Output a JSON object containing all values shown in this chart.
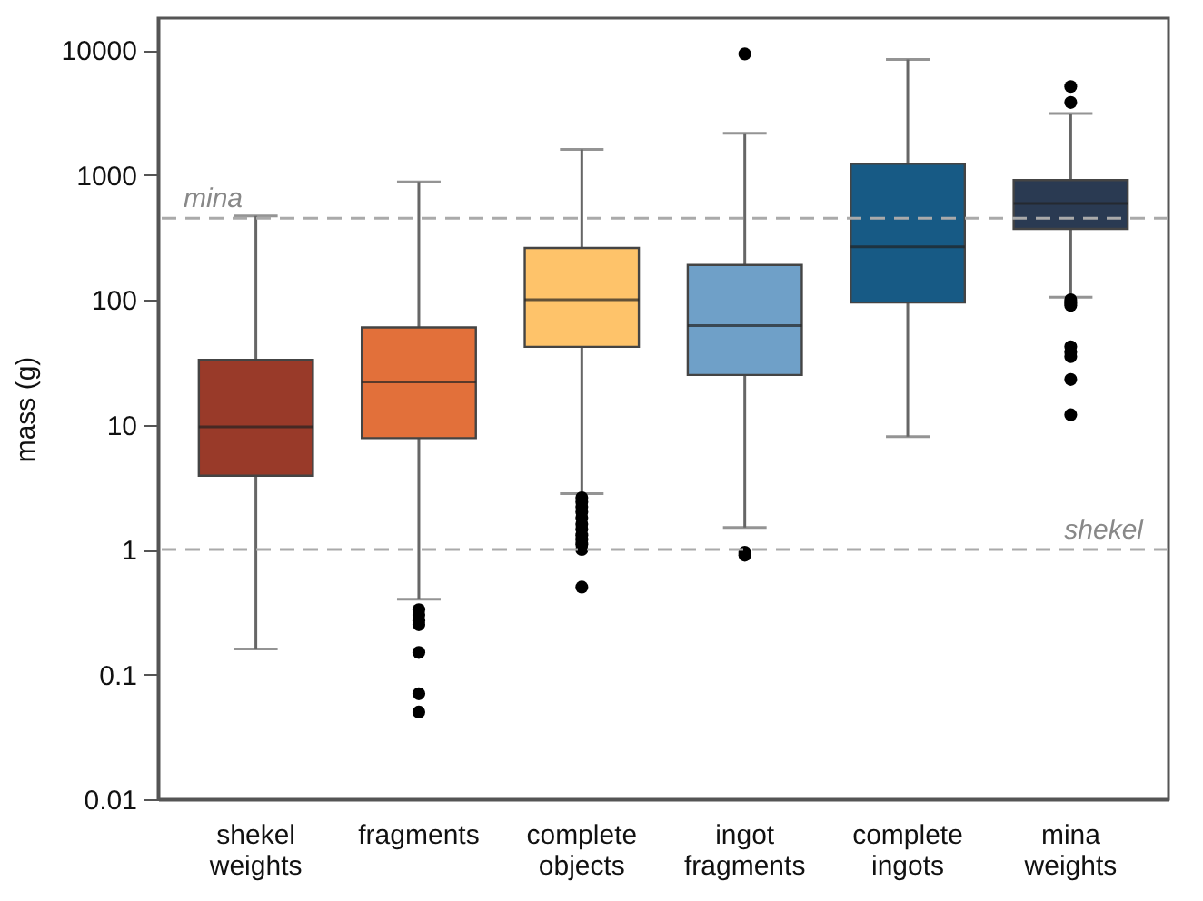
{
  "chart_data": {
    "type": "box",
    "ylabel": "mass (g)",
    "categories": [
      "shekel weights",
      "fragments",
      "complete objects",
      "ingot fragments",
      "complete ingots",
      "mina weights"
    ],
    "colors": [
      "#993a29",
      "#e2703a",
      "#fec36a",
      "#6fa0c8",
      "#175a85",
      "#2a3a52"
    ],
    "boxes": [
      {
        "low": 0.16,
        "q1": 3.9,
        "median": 9.6,
        "q3": 33,
        "high": 470
      },
      {
        "low": 0.4,
        "q1": 7.8,
        "median": 22,
        "q3": 60,
        "high": 880,
        "outliers": [
          0.33,
          0.3,
          0.27,
          0.25,
          0.15,
          0.07,
          0.05
        ]
      },
      {
        "low": 2.8,
        "q1": 42,
        "median": 100,
        "q3": 260,
        "high": 1600,
        "outliers": [
          2.6,
          2.4,
          2.2,
          2,
          1.8,
          1.6,
          1.45,
          1.3,
          1.2,
          1.1,
          1,
          0.5
        ]
      },
      {
        "low": 1.5,
        "q1": 25,
        "median": 62,
        "q3": 190,
        "high": 2150,
        "outliers": [
          9300,
          0.95,
          0.9
        ]
      },
      {
        "low": 8,
        "q1": 95,
        "median": 265,
        "q3": 1230,
        "high": 8400
      },
      {
        "low": 105,
        "q1": 370,
        "median": 590,
        "q3": 910,
        "high": 3100,
        "outliers": [
          5100,
          3800,
          100,
          95,
          90,
          42,
          38,
          35,
          23,
          12
        ]
      }
    ],
    "log": "y",
    "ylim": [
      0.01,
      18000
    ],
    "yticks": [
      0.01,
      0.1,
      1,
      10,
      100,
      1000,
      10000
    ],
    "grid": false,
    "ref_lines": [
      {
        "axis": "y",
        "value": 450,
        "label": "mina",
        "color": "#aaaaaa",
        "line_style": "dashed"
      },
      {
        "axis": "y",
        "value": 1,
        "label": "shekel",
        "color": "#aaaaaa",
        "line_style": "dashed"
      }
    ]
  }
}
